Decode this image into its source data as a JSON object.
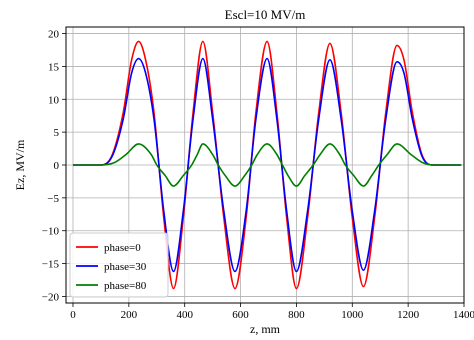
{
  "chart_data": {
    "type": "line",
    "title": "Escl=10 MV/m",
    "xlabel": "z, mm",
    "ylabel": "Ez, MV/m",
    "xlim": [
      -25,
      1400
    ],
    "ylim": [
      -21,
      21
    ],
    "x_ticks": [
      0,
      200,
      400,
      600,
      800,
      1000,
      1200,
      1400
    ],
    "x_tick_labels": [
      "0",
      "200",
      "400",
      "600",
      "800",
      "1000",
      "1200",
      "1400"
    ],
    "y_ticks": [
      -20,
      -15,
      -10,
      -5,
      0,
      5,
      10,
      15,
      20
    ],
    "y_tick_labels": [
      "−20",
      "−15",
      "−10",
      "−5",
      "0",
      "5",
      "10",
      "15",
      "20"
    ],
    "grid": true,
    "legend_position": "lower-left",
    "x_unit": "mm",
    "y_unit": "MV/m",
    "series": [
      {
        "name": "phase=0",
        "color": "#ff0000",
        "points": [
          [
            0,
            0
          ],
          [
            100,
            0
          ],
          [
            140,
            1.5
          ],
          [
            180,
            8
          ],
          [
            210,
            16
          ],
          [
            235,
            18.8
          ],
          [
            260,
            16
          ],
          [
            290,
            8
          ],
          [
            325,
            -8
          ],
          [
            360,
            -18.8
          ],
          [
            395,
            -8
          ],
          [
            430,
            8
          ],
          [
            465,
            18.8
          ],
          [
            500,
            8
          ],
          [
            540,
            -8
          ],
          [
            580,
            -18.8
          ],
          [
            620,
            -8
          ],
          [
            655,
            8
          ],
          [
            695,
            18.8
          ],
          [
            730,
            8
          ],
          [
            765,
            -8
          ],
          [
            800,
            -18.8
          ],
          [
            840,
            -8
          ],
          [
            880,
            8
          ],
          [
            920,
            18.5
          ],
          [
            960,
            8
          ],
          [
            1000,
            -8
          ],
          [
            1040,
            -18.5
          ],
          [
            1080,
            -8
          ],
          [
            1120,
            8
          ],
          [
            1160,
            18.2
          ],
          [
            1185,
            16
          ],
          [
            1215,
            8
          ],
          [
            1250,
            1.5
          ],
          [
            1290,
            0
          ],
          [
            1390,
            0
          ]
        ]
      },
      {
        "name": "phase=30",
        "color": "#0000ff",
        "points": [
          [
            0,
            0
          ],
          [
            100,
            0
          ],
          [
            140,
            1.3
          ],
          [
            180,
            7
          ],
          [
            210,
            14
          ],
          [
            235,
            16.2
          ],
          [
            260,
            14
          ],
          [
            290,
            7
          ],
          [
            325,
            -7
          ],
          [
            360,
            -16.2
          ],
          [
            395,
            -7
          ],
          [
            430,
            7
          ],
          [
            465,
            16.2
          ],
          [
            500,
            7
          ],
          [
            540,
            -7
          ],
          [
            580,
            -16.2
          ],
          [
            620,
            -7
          ],
          [
            655,
            7
          ],
          [
            695,
            16.2
          ],
          [
            730,
            7
          ],
          [
            765,
            -7
          ],
          [
            800,
            -16.2
          ],
          [
            840,
            -7
          ],
          [
            880,
            7
          ],
          [
            920,
            16
          ],
          [
            960,
            7
          ],
          [
            1000,
            -7
          ],
          [
            1040,
            -16
          ],
          [
            1080,
            -7
          ],
          [
            1120,
            7
          ],
          [
            1160,
            15.7
          ],
          [
            1185,
            14
          ],
          [
            1215,
            7
          ],
          [
            1250,
            1.3
          ],
          [
            1290,
            0
          ],
          [
            1390,
            0
          ]
        ]
      },
      {
        "name": "phase=80",
        "color": "#008000",
        "points": [
          [
            0,
            0
          ],
          [
            100,
            0
          ],
          [
            150,
            0.4
          ],
          [
            190,
            1.6
          ],
          [
            235,
            3.2
          ],
          [
            280,
            1.6
          ],
          [
            300,
            0
          ],
          [
            330,
            -1.6
          ],
          [
            360,
            -3.2
          ],
          [
            395,
            -1.6
          ],
          [
            425,
            0
          ],
          [
            445,
            1.6
          ],
          [
            465,
            3.2
          ],
          [
            500,
            1.6
          ],
          [
            520,
            0
          ],
          [
            545,
            -1.6
          ],
          [
            580,
            -3.2
          ],
          [
            615,
            -1.6
          ],
          [
            640,
            0
          ],
          [
            660,
            1.6
          ],
          [
            695,
            3.2
          ],
          [
            730,
            1.6
          ],
          [
            750,
            0
          ],
          [
            770,
            -1.6
          ],
          [
            800,
            -3.2
          ],
          [
            830,
            -1.6
          ],
          [
            860,
            0
          ],
          [
            885,
            1.6
          ],
          [
            920,
            3.2
          ],
          [
            955,
            1.6
          ],
          [
            975,
            0
          ],
          [
            1005,
            -1.6
          ],
          [
            1040,
            -3.2
          ],
          [
            1070,
            -1.6
          ],
          [
            1095,
            0
          ],
          [
            1125,
            1.6
          ],
          [
            1160,
            3.2
          ],
          [
            1210,
            1.6
          ],
          [
            1250,
            0.4
          ],
          [
            1290,
            0
          ],
          [
            1390,
            0
          ]
        ]
      }
    ]
  }
}
